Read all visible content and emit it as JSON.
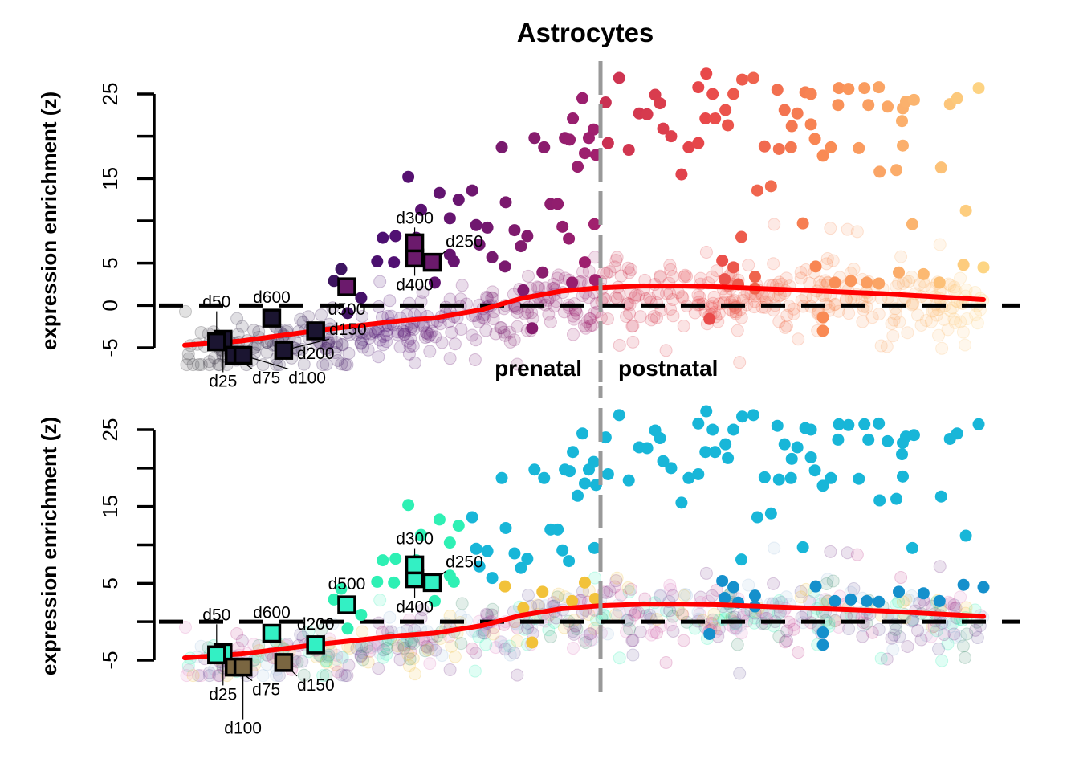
{
  "chart_data": {
    "type": "scatter",
    "title": "Astrocytes",
    "ylabel": "expression enrichment (z)",
    "xlabel": "",
    "period_labels": {
      "prenatal": "prenatal",
      "postnatal": "postnatal"
    },
    "birth_x": 52.1,
    "xlim": [
      0,
      100
    ],
    "panels": [
      {
        "id": "top",
        "ylim": [
          -5,
          25
        ],
        "ticks": [
          -5,
          0,
          5,
          10,
          15,
          20,
          25
        ],
        "tick_labels": [
          "-5",
          "0",
          "5",
          "",
          "15",
          "",
          "25"
        ]
      },
      {
        "id": "bottom",
        "ylim": [
          -5,
          25
        ],
        "ticks": [
          -5,
          0,
          5,
          10,
          15,
          20,
          25
        ],
        "tick_labels": [
          "-5",
          "",
          "5",
          "",
          "15",
          "",
          "25"
        ]
      }
    ],
    "reference_line_y": 0,
    "trend_curve": {
      "x": [
        0,
        7,
        17.1,
        27.1,
        31.2,
        37.2,
        42.2,
        47.2,
        52.1,
        57.3,
        62.3,
        67.3,
        77.4,
        87.4,
        100
      ],
      "y": [
        -4.7,
        -4.2,
        -2.9,
        -1.8,
        -1.5,
        -0.5,
        0.85,
        1.7,
        2.1,
        2.3,
        2.3,
        2.2,
        1.8,
        1.4,
        0.7
      ],
      "color": "#ff0000"
    },
    "background_cloud": {
      "count": 620,
      "spread": 1.9,
      "offset": -1.2,
      "opacity": 0.15
    },
    "organoid_samples": [
      {
        "label": "d25",
        "x": 4.8,
        "y": -4.0
      },
      {
        "label": "d50",
        "x": 4.0,
        "y": -4.3
      },
      {
        "label": "d75",
        "x": 6.2,
        "y": -5.9
      },
      {
        "label": "d100",
        "x": 7.3,
        "y": -5.9
      },
      {
        "label": "d150",
        "x": 12.4,
        "y": -5.3
      },
      {
        "label": "d200",
        "x": 16.4,
        "y": -3.0
      },
      {
        "label": "d250",
        "x": 31.0,
        "y": 5.1
      },
      {
        "label": "d300",
        "x": 28.8,
        "y": 5.6
      },
      {
        "label": "d400",
        "x": 28.8,
        "y": 7.4
      },
      {
        "label": "d500",
        "x": 20.3,
        "y": 2.2
      },
      {
        "label": "d600",
        "x": 10.9,
        "y": -1.5
      }
    ],
    "highlighted_points": [
      [
        28.0,
        15.2
      ],
      [
        29.6,
        11.3
      ],
      [
        31.9,
        13.3
      ],
      [
        34.3,
        12.5
      ],
      [
        36.0,
        13.6
      ],
      [
        33.2,
        10.3
      ],
      [
        36.5,
        9.5
      ],
      [
        37.9,
        9.2
      ],
      [
        36.9,
        7.2
      ],
      [
        38.5,
        5.7
      ],
      [
        40.1,
        4.6
      ],
      [
        40.2,
        12.2
      ],
      [
        41.3,
        8.9
      ],
      [
        42.1,
        7.0
      ],
      [
        42.9,
        8.2
      ],
      [
        39.7,
        18.7
      ],
      [
        43.8,
        19.8
      ],
      [
        45.0,
        18.7
      ],
      [
        45.8,
        12.0
      ],
      [
        46.7,
        12.0
      ],
      [
        47.3,
        9.3
      ],
      [
        48.1,
        7.9
      ],
      [
        47.6,
        19.8
      ],
      [
        48.6,
        22.1
      ],
      [
        49.8,
        24.5
      ],
      [
        49.2,
        16.4
      ],
      [
        50.1,
        18.0
      ],
      [
        51.2,
        20.8
      ],
      [
        51.5,
        17.8
      ],
      [
        51.3,
        9.6
      ],
      [
        50.1,
        5.1
      ],
      [
        48.5,
        2.7
      ],
      [
        51.4,
        3.0
      ],
      [
        24.8,
        8.0
      ],
      [
        26.4,
        8.2
      ],
      [
        24.1,
        5.2
      ],
      [
        26.2,
        5.1
      ],
      [
        18.7,
        2.9
      ],
      [
        19.6,
        4.3
      ],
      [
        22.1,
        0.9
      ],
      [
        20.4,
        -0.9
      ],
      [
        31.3,
        2.7
      ],
      [
        29.0,
        8.0
      ],
      [
        33.2,
        6.0
      ],
      [
        33.7,
        5.2
      ],
      [
        43.5,
        -2.7
      ],
      [
        42.4,
        1.8
      ],
      [
        44.8,
        3.9
      ],
      [
        48.2,
        19.6
      ],
      [
        50.6,
        19.8
      ],
      [
        54.4,
        26.9
      ],
      [
        52.7,
        24.0
      ],
      [
        53.0,
        19.2
      ],
      [
        55.6,
        18.4
      ],
      [
        56.9,
        22.7
      ],
      [
        57.9,
        22.6
      ],
      [
        58.9,
        24.9
      ],
      [
        59.5,
        23.9
      ],
      [
        59.9,
        20.9
      ],
      [
        60.9,
        20.0
      ],
      [
        62.2,
        15.5
      ],
      [
        63.1,
        18.7
      ],
      [
        64.3,
        19.2
      ],
      [
        64.3,
        25.8
      ],
      [
        65.3,
        27.4
      ],
      [
        66.1,
        25.0
      ],
      [
        65.2,
        22.1
      ],
      [
        66.4,
        22.1
      ],
      [
        67.7,
        23.1
      ],
      [
        68.0,
        21.3
      ],
      [
        68.7,
        25.0
      ],
      [
        69.8,
        26.7
      ],
      [
        71.2,
        26.9
      ],
      [
        71.7,
        13.6
      ],
      [
        73.4,
        14.1
      ],
      [
        72.6,
        18.8
      ],
      [
        74.2,
        25.5
      ],
      [
        75.1,
        23.1
      ],
      [
        76.0,
        21.2
      ],
      [
        76.7,
        22.7
      ],
      [
        74.4,
        18.5
      ],
      [
        75.9,
        18.7
      ],
      [
        77.7,
        25.2
      ],
      [
        78.4,
        25.0
      ],
      [
        78.9,
        19.7
      ],
      [
        78.4,
        21.4
      ],
      [
        79.9,
        17.7
      ],
      [
        80.9,
        18.7
      ],
      [
        81.9,
        25.7
      ],
      [
        81.8,
        23.7
      ],
      [
        83.1,
        25.6
      ],
      [
        84.4,
        18.6
      ],
      [
        85.1,
        25.7
      ],
      [
        85.6,
        23.7
      ],
      [
        86.9,
        25.8
      ],
      [
        88.0,
        23.5
      ],
      [
        89.9,
        23.3
      ],
      [
        90.3,
        24.1
      ],
      [
        91.3,
        24.3
      ],
      [
        89.8,
        21.8
      ],
      [
        89.9,
        18.9
      ],
      [
        87.0,
        15.8
      ],
      [
        89.1,
        16.0
      ],
      [
        91.1,
        9.6
      ],
      [
        94.7,
        16.3
      ],
      [
        95.8,
        23.8
      ],
      [
        96.7,
        24.5
      ],
      [
        97.8,
        11.2
      ],
      [
        99.4,
        25.7
      ],
      [
        69.7,
        8.1
      ],
      [
        67.3,
        5.3
      ],
      [
        68.7,
        4.5
      ],
      [
        67.6,
        3.1
      ],
      [
        69.3,
        2.5
      ],
      [
        71.4,
        2.0
      ],
      [
        77.4,
        9.7
      ],
      [
        79.0,
        4.6
      ],
      [
        79.9,
        -1.4
      ],
      [
        79.9,
        -3.0
      ],
      [
        81.4,
        2.7
      ],
      [
        83.4,
        2.9
      ],
      [
        85.4,
        2.7
      ],
      [
        86.9,
        2.6
      ],
      [
        89.4,
        3.9
      ],
      [
        92.5,
        3.7
      ],
      [
        94.5,
        2.7
      ],
      [
        97.5,
        4.8
      ],
      [
        100,
        4.5
      ],
      [
        65.7,
        -1.6
      ],
      [
        71.4,
        3.4
      ]
    ],
    "colors": {
      "top_gradient": [
        [
          0,
          "#3a3a3a"
        ],
        [
          12,
          "#2a1a48"
        ],
        [
          25,
          "#4d0f72"
        ],
        [
          40,
          "#7a1a6e"
        ],
        [
          52,
          "#a3206e"
        ],
        [
          52.2,
          "#c83052"
        ],
        [
          65,
          "#e8474a"
        ],
        [
          80,
          "#f98a54"
        ],
        [
          100,
          "#fdd584"
        ]
      ],
      "top_square_dark": "#1b1531",
      "top_square_purple": "#6b1a6c",
      "bottom_green": "#2ef0b4",
      "bottom_cyan": "#18b6d8",
      "bottom_blue": "#1590cc",
      "bottom_yellow": "#f2c23a",
      "bottom_square_green": "#33f0c4",
      "bottom_square_brown": "#7a6641",
      "bottom_cloud_palette": [
        "#2ef0b4",
        "#3d8a6a",
        "#7b3a8a",
        "#c03a8a",
        "#e080c0",
        "#6a5a9a",
        "#a0c0e0",
        "#f0c040"
      ],
      "divider": "#999999"
    }
  }
}
